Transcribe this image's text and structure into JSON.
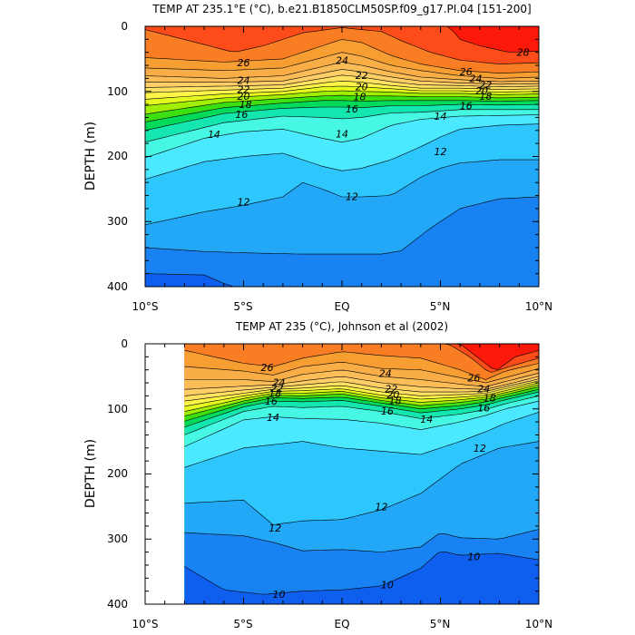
{
  "chart_data": [
    {
      "type": "contour",
      "title": "TEMP AT 235.1°E (°C), b.e21.B1850CLM50SP.f09_g17.PI.04 [151-200]",
      "ylabel": "DEPTH (m)",
      "xlabel": "",
      "x_ticks": [
        "10°S",
        "5°S",
        "EQ",
        "5°N",
        "10°N"
      ],
      "x_tick_values": [
        -10,
        -5,
        0,
        5,
        10
      ],
      "y_ticks": [
        "0",
        "100",
        "200",
        "300",
        "400"
      ],
      "y_tick_values": [
        0,
        100,
        200,
        300,
        400
      ],
      "xlim": [
        -10,
        10
      ],
      "ylim": [
        400,
        0
      ],
      "data_xlim": [
        -10,
        10
      ],
      "levels": [
        10,
        11,
        12,
        13,
        14,
        15,
        16,
        17,
        18,
        19,
        20,
        21,
        22,
        23,
        24,
        25,
        26,
        27,
        28
      ],
      "contour_labels": [
        {
          "text": "26",
          "x": -5,
          "y": 56
        },
        {
          "text": "24",
          "x": -5,
          "y": 83
        },
        {
          "text": "22",
          "x": -5,
          "y": 97
        },
        {
          "text": "20",
          "x": -5,
          "y": 107
        },
        {
          "text": "18",
          "x": -4.9,
          "y": 120
        },
        {
          "text": "16",
          "x": -5.1,
          "y": 135
        },
        {
          "text": "14",
          "x": -6.5,
          "y": 166
        },
        {
          "text": "14",
          "x": 0,
          "y": 165
        },
        {
          "text": "24",
          "x": 0,
          "y": 52
        },
        {
          "text": "22",
          "x": 1,
          "y": 75
        },
        {
          "text": "20",
          "x": 1,
          "y": 93
        },
        {
          "text": "18",
          "x": 0.9,
          "y": 108
        },
        {
          "text": "16",
          "x": 0.5,
          "y": 127
        },
        {
          "text": "14",
          "x": 5,
          "y": 138
        },
        {
          "text": "16",
          "x": 6.3,
          "y": 122
        },
        {
          "text": "18",
          "x": 7.3,
          "y": 107
        },
        {
          "text": "20",
          "x": 7.1,
          "y": 99
        },
        {
          "text": "22",
          "x": 7.3,
          "y": 90
        },
        {
          "text": "24",
          "x": 6.8,
          "y": 80
        },
        {
          "text": "26",
          "x": 6.3,
          "y": 70
        },
        {
          "text": "28",
          "x": 9.2,
          "y": 40
        },
        {
          "text": "12",
          "x": 5,
          "y": 192
        },
        {
          "text": "12",
          "x": -5,
          "y": 270
        },
        {
          "text": "12",
          "x": 0.5,
          "y": 261
        }
      ]
    },
    {
      "type": "contour",
      "title": "TEMP AT 235 (°C), Johnson et al (2002)",
      "ylabel": "DEPTH (m)",
      "xlabel": "",
      "x_ticks": [
        "10°S",
        "5°S",
        "EQ",
        "5°N",
        "10°N"
      ],
      "x_tick_values": [
        -10,
        -5,
        0,
        5,
        10
      ],
      "y_ticks": [
        "0",
        "100",
        "200",
        "300",
        "400"
      ],
      "y_tick_values": [
        0,
        100,
        200,
        300,
        400
      ],
      "xlim": [
        -10,
        10
      ],
      "ylim": [
        400,
        0
      ],
      "data_xlim": [
        -8,
        10
      ],
      "levels": [
        10,
        11,
        12,
        13,
        14,
        15,
        16,
        17,
        18,
        19,
        20,
        21,
        22,
        23,
        24,
        25,
        26,
        27,
        28
      ],
      "contour_labels": [
        {
          "text": "26",
          "x": -3.8,
          "y": 36
        },
        {
          "text": "24",
          "x": -3.2,
          "y": 59
        },
        {
          "text": "22",
          "x": -3.3,
          "y": 68
        },
        {
          "text": "18",
          "x": -3.4,
          "y": 76
        },
        {
          "text": "16",
          "x": -3.6,
          "y": 88
        },
        {
          "text": "14",
          "x": -3.5,
          "y": 113
        },
        {
          "text": "24",
          "x": 2.2,
          "y": 45
        },
        {
          "text": "22",
          "x": 2.5,
          "y": 69
        },
        {
          "text": "20",
          "x": 2.6,
          "y": 78
        },
        {
          "text": "18",
          "x": 2.7,
          "y": 87
        },
        {
          "text": "16",
          "x": 2.3,
          "y": 103
        },
        {
          "text": "14",
          "x": 4.3,
          "y": 116
        },
        {
          "text": "26",
          "x": 6.7,
          "y": 52
        },
        {
          "text": "24",
          "x": 7.2,
          "y": 69
        },
        {
          "text": "18",
          "x": 7.5,
          "y": 83
        },
        {
          "text": "16",
          "x": 7.2,
          "y": 98
        },
        {
          "text": "12",
          "x": 7,
          "y": 160
        },
        {
          "text": "12",
          "x": 2,
          "y": 250
        },
        {
          "text": "12",
          "x": -3.4,
          "y": 283
        },
        {
          "text": "10",
          "x": 6.7,
          "y": 327
        },
        {
          "text": "10",
          "x": 2.3,
          "y": 370
        },
        {
          "text": "10",
          "x": -3.2,
          "y": 385
        }
      ]
    }
  ]
}
